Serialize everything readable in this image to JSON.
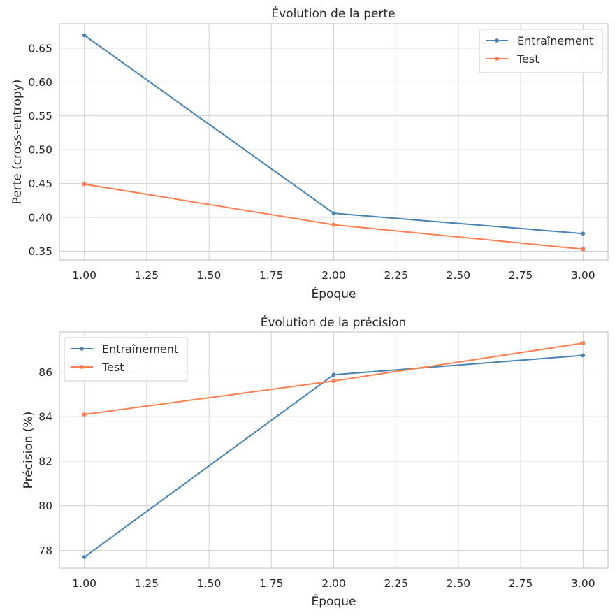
{
  "colors": {
    "train": "#4682b4",
    "test": "#ff7f50"
  },
  "chart_data": [
    {
      "type": "line",
      "title": "Évolution de la perte",
      "xlabel": "Époque",
      "ylabel": "Perte (cross-entropy)",
      "x": [
        1,
        2,
        3
      ],
      "xlim": [
        0.9,
        3.1
      ],
      "ylim": [
        0.337,
        0.686
      ],
      "xticks": [
        1.0,
        1.25,
        1.5,
        1.75,
        2.0,
        2.25,
        2.5,
        2.75,
        3.0
      ],
      "xtick_labels": [
        "1.00",
        "1.25",
        "1.50",
        "1.75",
        "2.00",
        "2.25",
        "2.50",
        "2.75",
        "3.00"
      ],
      "yticks": [
        0.35,
        0.4,
        0.45,
        0.5,
        0.55,
        0.6,
        0.65
      ],
      "ytick_labels": [
        "0.35",
        "0.40",
        "0.45",
        "0.50",
        "0.55",
        "0.60",
        "0.65"
      ],
      "grid": true,
      "legend_position": "top-right",
      "series": [
        {
          "name": "Entraînement",
          "values": [
            0.669,
            0.406,
            0.376
          ],
          "marker": "circle"
        },
        {
          "name": "Test",
          "values": [
            0.449,
            0.389,
            0.353
          ],
          "marker": "square"
        }
      ]
    },
    {
      "type": "line",
      "title": "Évolution de la précision",
      "xlabel": "Époque",
      "ylabel": "Précision (%)",
      "x": [
        1,
        2,
        3
      ],
      "xlim": [
        0.9,
        3.1
      ],
      "ylim": [
        77.2,
        87.8
      ],
      "xticks": [
        1.0,
        1.25,
        1.5,
        1.75,
        2.0,
        2.25,
        2.5,
        2.75,
        3.0
      ],
      "xtick_labels": [
        "1.00",
        "1.25",
        "1.50",
        "1.75",
        "2.00",
        "2.25",
        "2.50",
        "2.75",
        "3.00"
      ],
      "yticks": [
        78,
        80,
        82,
        84,
        86
      ],
      "ytick_labels": [
        "78",
        "80",
        "82",
        "84",
        "86"
      ],
      "grid": true,
      "legend_position": "top-left",
      "series": [
        {
          "name": "Entraînement",
          "values": [
            77.7,
            85.88,
            86.75
          ],
          "marker": "circle"
        },
        {
          "name": "Test",
          "values": [
            84.1,
            85.6,
            87.3
          ],
          "marker": "square"
        }
      ]
    }
  ]
}
